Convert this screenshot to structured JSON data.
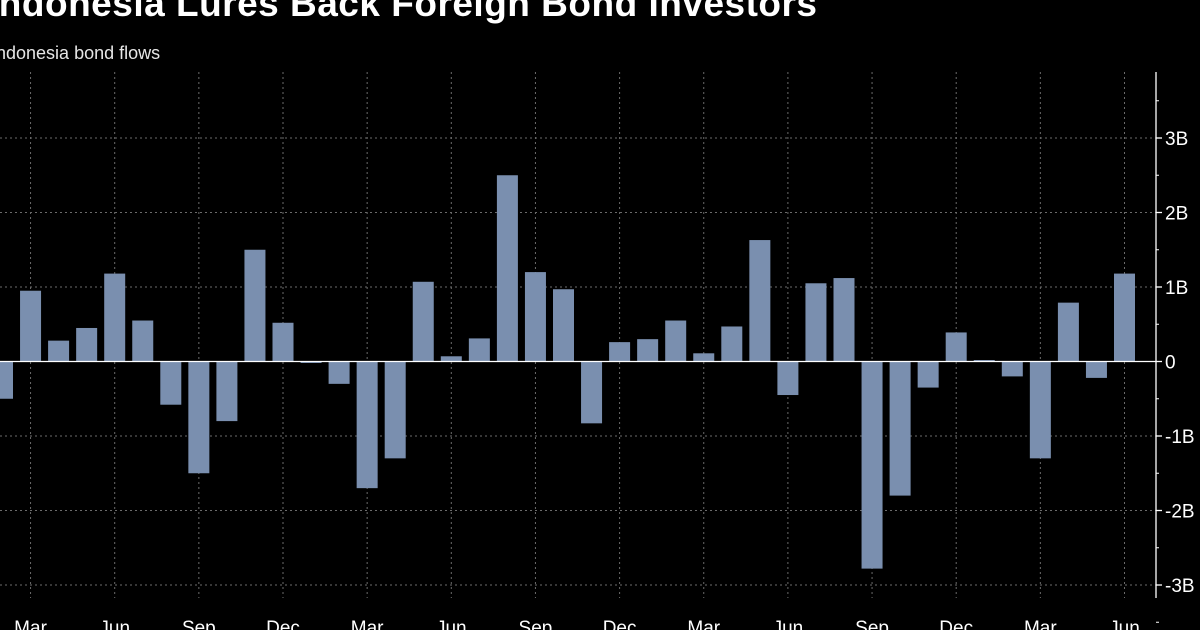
{
  "chart_data": {
    "type": "bar",
    "title": "Indonesia Lures Back Foreign Bond Investors",
    "subtitle": "Indonesia bond flows",
    "xlabel": "",
    "ylabel": "",
    "ylim": [
      -3.2,
      3.8
    ],
    "y_ticks": [
      3,
      2,
      1,
      0,
      -1,
      -2,
      -3
    ],
    "y_tick_labels": [
      "3B",
      "2B",
      "1B",
      "0",
      "-1B",
      "-2B",
      "-3B"
    ],
    "x_tick_labels": [
      "Mar",
      "Jun",
      "Sep",
      "Dec",
      "Mar",
      "Jun",
      "Sep",
      "Dec",
      "Mar",
      "Jun",
      "Sep",
      "Dec",
      "Mar",
      "Jun"
    ],
    "x_tick_bar_index": [
      1,
      4,
      7,
      10,
      13,
      16,
      19,
      22,
      25,
      28,
      31,
      34,
      37,
      40
    ],
    "grid": true,
    "bar_color": "#7a8faf",
    "values": [
      -0.5,
      0.95,
      0.28,
      0.45,
      1.18,
      0.55,
      -0.58,
      -1.5,
      -0.8,
      1.5,
      0.52,
      0.0,
      -0.3,
      -1.7,
      -1.3,
      1.07,
      0.07,
      0.31,
      2.5,
      1.2,
      0.97,
      -0.83,
      0.26,
      0.3,
      0.55,
      0.11,
      0.47,
      1.63,
      -0.45,
      1.05,
      1.12,
      -2.78,
      -1.8,
      -0.35,
      0.39,
      0.02,
      -0.2,
      -1.3,
      0.79,
      -0.22,
      1.18
    ]
  }
}
